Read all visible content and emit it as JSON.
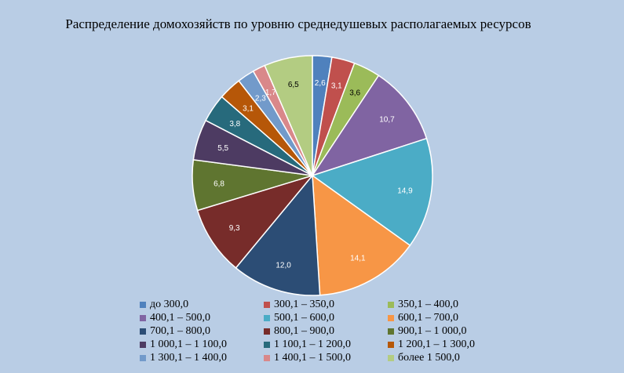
{
  "chart_data": {
    "type": "pie",
    "title": "Распределение домохозяйств по уровню среднедушевых располагаемых ресурсов",
    "categories": [
      "до 300,0",
      "300,1 – 350,0",
      "350,1 – 400,0",
      "400,1 – 500,0",
      "500,1 – 600,0",
      "600,1 – 700,0",
      "700,1 – 800,0",
      "800,1 – 900,0",
      "900,1 – 1 000,0",
      "1 000,1 – 1 100,0",
      "1 100,1 – 1 200,0",
      "1 200,1 – 1 300,0",
      "1 300,1 – 1 400,0",
      "1 400,1 – 1 500,0",
      "более 1 500,0"
    ],
    "values": [
      2.6,
      3.1,
      3.6,
      10.7,
      14.9,
      14.1,
      12.0,
      9.3,
      6.8,
      5.5,
      3.8,
      3.1,
      2.3,
      1.7,
      6.5
    ],
    "labels": [
      "2,6",
      "3,1",
      "3,6",
      "10,7",
      "14,9",
      "14,1",
      "12,0",
      "9,3",
      "6,8",
      "5,5",
      "3,8",
      "3,1",
      "2,3",
      "1,7",
      "6,5"
    ],
    "colors": [
      "#4f81bd",
      "#c0504d",
      "#9bbb59",
      "#8064a2",
      "#4bacc6",
      "#f79646",
      "#2c4d75",
      "#772c2a",
      "#5f7530",
      "#4d3b62",
      "#276a7c",
      "#b65708",
      "#729aca",
      "#d9888a",
      "#b3cc82"
    ],
    "legend_position": "bottom"
  }
}
